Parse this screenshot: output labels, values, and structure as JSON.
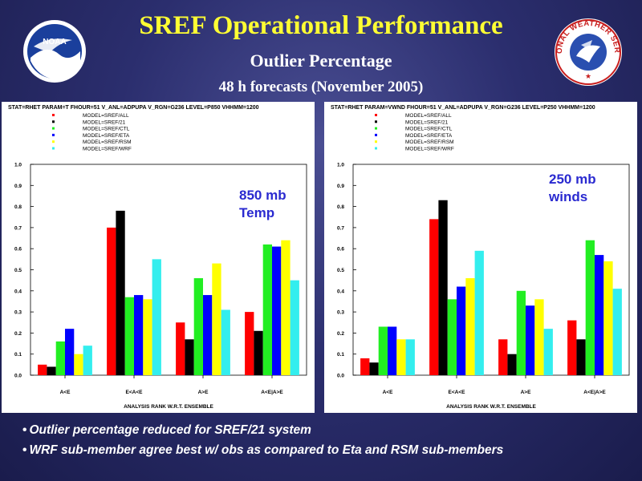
{
  "page": {
    "title": "SREF Operational Performance",
    "subtitle": "Outlier Percentage",
    "subsubtitle": "48 h forecasts (November 2005)",
    "bullets": [
      "Outlier percentage reduced for SREF/21 system",
      "WRF sub-member  agree best w/ obs as compared to Eta and RSM sub-members"
    ],
    "logos": {
      "noaa_text": "NOAA",
      "nws_text": "NATIONAL WEATHER SERVICE"
    }
  },
  "colors": {
    "SREF/ALL": "#ff0000",
    "SREF/21": "#000000",
    "SREF/CTL": "#22ee22",
    "SREF/ETA": "#0000ff",
    "SREF/RSM": "#ffff00",
    "SREF/WRF": "#33eeee"
  },
  "chart_data": [
    {
      "type": "bar",
      "title": "STAT=RHET PARAM=T FHOUR=51 V_ANL=ADPUPA V_RGN=G236 LEVEL=P850 VHHMM=1200",
      "annotation": [
        "850 mb",
        "Temp"
      ],
      "xlabel": "ANALYSIS RANK W.R.T. ENSEMBLE",
      "ylabel": "",
      "ylim": [
        0,
        1.0
      ],
      "yticks": [
        "0.0",
        "0.1",
        "0.2",
        "0.3",
        "0.4",
        "0.5",
        "0.6",
        "0.7",
        "0.8",
        "0.9",
        "1.0"
      ],
      "categories": [
        "A<E",
        "E<A<E",
        "A>E",
        "A<E|A>E"
      ],
      "legend_position": "top-left",
      "series": [
        {
          "name": "MODEL=SREF/ALL",
          "key": "SREF/ALL",
          "values": [
            0.05,
            0.7,
            0.25,
            0.3
          ]
        },
        {
          "name": "MODEL=SREF/21",
          "key": "SREF/21",
          "values": [
            0.04,
            0.78,
            0.17,
            0.21
          ]
        },
        {
          "name": "MODEL=SREF/CTL",
          "key": "SREF/CTL",
          "values": [
            0.16,
            0.37,
            0.46,
            0.62
          ]
        },
        {
          "name": "MODEL=SREF/ETA",
          "key": "SREF/ETA",
          "values": [
            0.22,
            0.38,
            0.38,
            0.61
          ]
        },
        {
          "name": "MODEL=SREF/RSM",
          "key": "SREF/RSM",
          "values": [
            0.1,
            0.36,
            0.53,
            0.64
          ]
        },
        {
          "name": "MODEL=SREF/WRF",
          "key": "SREF/WRF",
          "values": [
            0.14,
            0.55,
            0.31,
            0.45
          ]
        }
      ]
    },
    {
      "type": "bar",
      "title": "STAT=RHET PARAM=VWND FHOUR=51 V_ANL=ADPUPA V_RGN=G236 LEVEL=P250 VHHMM=1200",
      "annotation": [
        "250 mb",
        "winds"
      ],
      "xlabel": "ANALYSIS RANK W.R.T. ENSEMBLE",
      "ylabel": "",
      "ylim": [
        0,
        1.0
      ],
      "yticks": [
        "0.0",
        "0.1",
        "0.2",
        "0.3",
        "0.4",
        "0.5",
        "0.6",
        "0.7",
        "0.8",
        "0.9",
        "1.0"
      ],
      "categories": [
        "A<E",
        "E<A<E",
        "A>E",
        "A<E|A>E"
      ],
      "legend_position": "top-left",
      "series": [
        {
          "name": "MODEL=SREF/ALL",
          "key": "SREF/ALL",
          "values": [
            0.08,
            0.74,
            0.17,
            0.26
          ]
        },
        {
          "name": "MODEL=SREF/21",
          "key": "SREF/21",
          "values": [
            0.06,
            0.83,
            0.1,
            0.17
          ]
        },
        {
          "name": "MODEL=SREF/CTL",
          "key": "SREF/CTL",
          "values": [
            0.23,
            0.36,
            0.4,
            0.64
          ]
        },
        {
          "name": "MODEL=SREF/ETA",
          "key": "SREF/ETA",
          "values": [
            0.23,
            0.42,
            0.33,
            0.57
          ]
        },
        {
          "name": "MODEL=SREF/RSM",
          "key": "SREF/RSM",
          "values": [
            0.17,
            0.46,
            0.36,
            0.54
          ]
        },
        {
          "name": "MODEL=SREF/WRF",
          "key": "SREF/WRF",
          "values": [
            0.17,
            0.59,
            0.22,
            0.41
          ]
        }
      ]
    }
  ]
}
